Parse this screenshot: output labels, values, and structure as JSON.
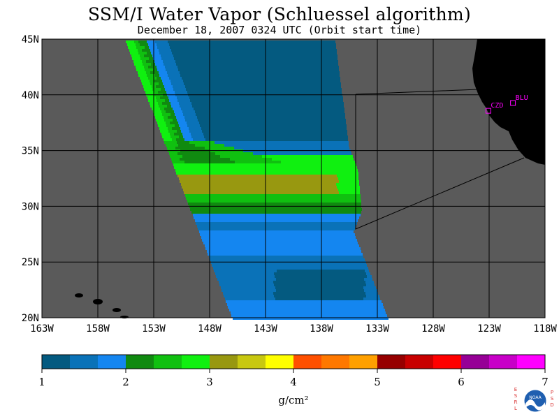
{
  "title": "SSM/I Water Vapor (Schluessel algorithm)",
  "subtitle": "December 18, 2007  0324 UTC  (Orbit start time)",
  "map": {
    "lon_labels": [
      "163W",
      "158W",
      "153W",
      "148W",
      "143W",
      "138W",
      "133W",
      "128W",
      "123W",
      "118W"
    ],
    "lat_labels": [
      "45N",
      "40N",
      "35N",
      "30N",
      "25N",
      "20N"
    ],
    "stations": [
      {
        "id": "CZD",
        "lon": -123.1,
        "lat": 38.6
      },
      {
        "id": "BLU",
        "lon": -120.9,
        "lat": 39.3
      }
    ],
    "colors": {
      "land": "#000000",
      "no_data": "#5a5a5a",
      "grid": "#000000",
      "station": "#ff00ff"
    }
  },
  "colorbar": {
    "label": "g/cm²",
    "tick_labels": [
      "1",
      "2",
      "3",
      "4",
      "5",
      "6",
      "7"
    ],
    "colors": [
      "#045a80",
      "#0a72b8",
      "#1486f0",
      "#108a10",
      "#10c010",
      "#10f010",
      "#989810",
      "#c8c810",
      "#ffff00",
      "#ff5000",
      "#ff7800",
      "#ffa000",
      "#960000",
      "#c80000",
      "#ff0000",
      "#960096",
      "#c800c8",
      "#ff00ff"
    ]
  },
  "logo": {
    "left_text": "ESRL",
    "right_text": "PSD",
    "center_text": "NOAA"
  }
}
